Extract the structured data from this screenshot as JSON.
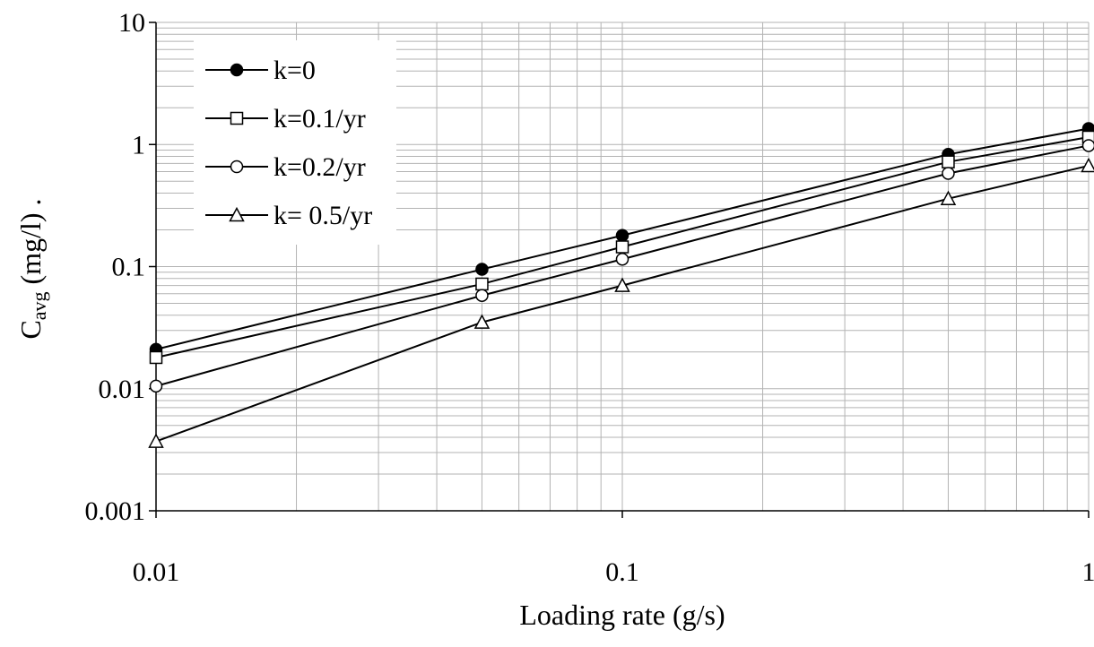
{
  "chart_data": {
    "type": "line",
    "title": "",
    "xlabel": "Loading rate (g/s)",
    "ylabel": {
      "main": "C",
      "subscript": "avg",
      "rest": " (mg/l) ."
    },
    "xscale": "log",
    "yscale": "log",
    "xlim": [
      0.01,
      1
    ],
    "ylim": [
      0.001,
      10
    ],
    "x_ticks": [
      {
        "value": 0.01,
        "label": "0.01"
      },
      {
        "value": 0.1,
        "label": "0.1"
      },
      {
        "value": 1,
        "label": "1"
      }
    ],
    "y_ticks": [
      {
        "value": 0.001,
        "label": "0.001"
      },
      {
        "value": 0.01,
        "label": "0.01"
      },
      {
        "value": 0.1,
        "label": "0.1"
      },
      {
        "value": 1,
        "label": "1"
      },
      {
        "value": 10,
        "label": "10"
      }
    ],
    "grid": true,
    "legend_position": "top-left",
    "x": [
      0.01,
      0.05,
      0.1,
      0.5,
      1
    ],
    "series": [
      {
        "name": "k=0",
        "marker": "filled-circle",
        "values": [
          0.021,
          0.095,
          0.18,
          0.83,
          1.35
        ]
      },
      {
        "name": "k=0.1/yr",
        "marker": "open-square",
        "values": [
          0.018,
          0.072,
          0.145,
          0.72,
          1.15
        ]
      },
      {
        "name": "k=0.2/yr",
        "marker": "open-circle",
        "values": [
          0.0105,
          0.058,
          0.115,
          0.58,
          0.98
        ]
      },
      {
        "name": "k= 0.5/yr",
        "marker": "open-triangle",
        "values": [
          0.0037,
          0.035,
          0.07,
          0.36,
          0.67
        ]
      }
    ],
    "colors": {
      "line": "#000000",
      "grid": "#b3b3b3",
      "background": "#ffffff"
    }
  }
}
